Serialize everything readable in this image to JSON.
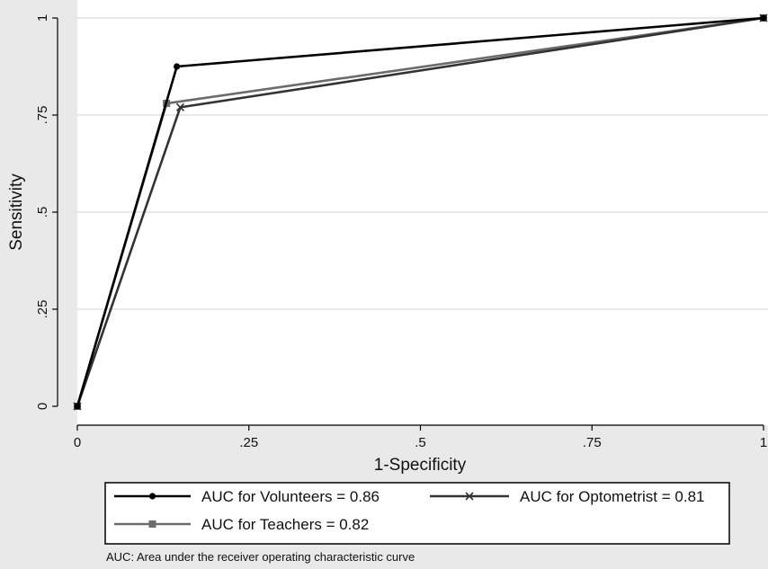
{
  "chart_data": {
    "type": "line",
    "xlabel": "1-Specificity",
    "ylabel": "Sensitivity",
    "xlim": [
      0,
      1
    ],
    "ylim": [
      0,
      1
    ],
    "xticks": [
      0,
      0.25,
      0.5,
      0.75,
      1
    ],
    "xtick_labels": [
      "0",
      ".25",
      ".5",
      ".75",
      "1"
    ],
    "yticks": [
      0,
      0.25,
      0.5,
      0.75,
      1
    ],
    "ytick_labels": [
      "0",
      ".25",
      ".5",
      ".75",
      "1"
    ],
    "grid": "horizontal",
    "legend_position": "bottom",
    "series": [
      {
        "name": "AUC for Volunteers = 0.86",
        "marker": "circle",
        "color": "#000000",
        "x": [
          0,
          0.145,
          1
        ],
        "y": [
          0,
          0.875,
          1
        ]
      },
      {
        "name": "AUC for Optometrist = 0.81",
        "marker": "x",
        "color": "#333333",
        "x": [
          0,
          0.15,
          1
        ],
        "y": [
          0,
          0.77,
          1
        ]
      },
      {
        "name": "AUC for Teachers = 0.82",
        "marker": "square",
        "color": "#6b6b6b",
        "x": [
          0,
          0.13,
          1
        ],
        "y": [
          0,
          0.78,
          1
        ]
      }
    ]
  },
  "footnote": "AUC: Area under the receiver operating characteristic curve"
}
